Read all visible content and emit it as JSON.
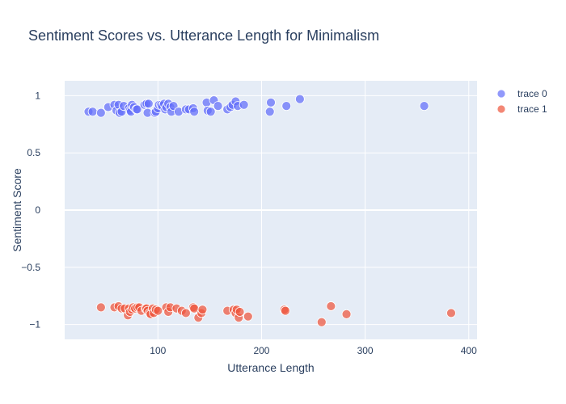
{
  "chart_data": {
    "type": "scatter",
    "title": "Sentiment Scores vs. Utterance Length for Minimalism",
    "xlabel": "Utterance Length",
    "ylabel": "Sentiment Score",
    "xlim": [
      10,
      408
    ],
    "ylim": [
      -1.13,
      1.13
    ],
    "xticks": [
      100,
      200,
      300,
      400
    ],
    "yticks": [
      1,
      0.5,
      0,
      -0.5,
      -1
    ],
    "ytick_labels": [
      "1",
      "0.5",
      "0",
      "−0.5",
      "−1"
    ],
    "grid": true,
    "legend_position": "top-right",
    "series": [
      {
        "name": "trace 0",
        "color": "#636efa",
        "x": [
          33,
          37,
          45,
          52,
          58,
          60,
          62,
          63,
          65,
          67,
          72,
          73,
          74,
          75,
          77,
          79,
          80,
          87,
          89,
          90,
          91,
          97,
          98,
          100,
          101,
          103,
          104,
          106,
          107,
          108,
          110,
          112,
          113,
          115,
          120,
          127,
          130,
          134,
          135,
          147,
          148,
          151,
          154,
          158,
          167,
          170,
          172,
          175,
          177,
          183,
          208,
          209,
          224,
          237,
          357
        ],
        "y": [
          0.86,
          0.86,
          0.85,
          0.9,
          0.92,
          0.87,
          0.92,
          0.85,
          0.86,
          0.91,
          0.89,
          0.87,
          0.86,
          0.92,
          0.9,
          0.88,
          0.88,
          0.92,
          0.93,
          0.85,
          0.93,
          0.85,
          0.86,
          0.89,
          0.92,
          0.92,
          0.91,
          0.93,
          0.88,
          0.9,
          0.93,
          0.9,
          0.86,
          0.91,
          0.86,
          0.88,
          0.88,
          0.89,
          0.86,
          0.94,
          0.87,
          0.86,
          0.96,
          0.91,
          0.88,
          0.9,
          0.92,
          0.95,
          0.91,
          0.92,
          0.86,
          0.94,
          0.91,
          0.97,
          0.91
        ]
      },
      {
        "name": "trace 1",
        "color": "#ef553b",
        "x": [
          45,
          58,
          62,
          65,
          68,
          71,
          72,
          73,
          75,
          76,
          78,
          80,
          82,
          84,
          88,
          89,
          90,
          92,
          93,
          95,
          96,
          98,
          100,
          108,
          110,
          112,
          118,
          123,
          127,
          134,
          135,
          139,
          142,
          143,
          167,
          173,
          175,
          176,
          178,
          179,
          187,
          222,
          223,
          258,
          267,
          282,
          383
        ],
        "y": [
          -0.85,
          -0.85,
          -0.84,
          -0.86,
          -0.86,
          -0.92,
          -0.86,
          -0.89,
          -0.87,
          -0.85,
          -0.86,
          -0.85,
          -0.85,
          -0.88,
          -0.86,
          -0.86,
          -0.88,
          -0.9,
          -0.91,
          -0.86,
          -0.9,
          -0.87,
          -0.88,
          -0.85,
          -0.89,
          -0.85,
          -0.86,
          -0.88,
          -0.9,
          -0.85,
          -0.86,
          -0.94,
          -0.9,
          -0.87,
          -0.88,
          -0.87,
          -0.9,
          -0.87,
          -0.94,
          -0.89,
          -0.93,
          -0.87,
          -0.88,
          -0.98,
          -0.84,
          -0.91,
          -0.9
        ]
      }
    ]
  }
}
